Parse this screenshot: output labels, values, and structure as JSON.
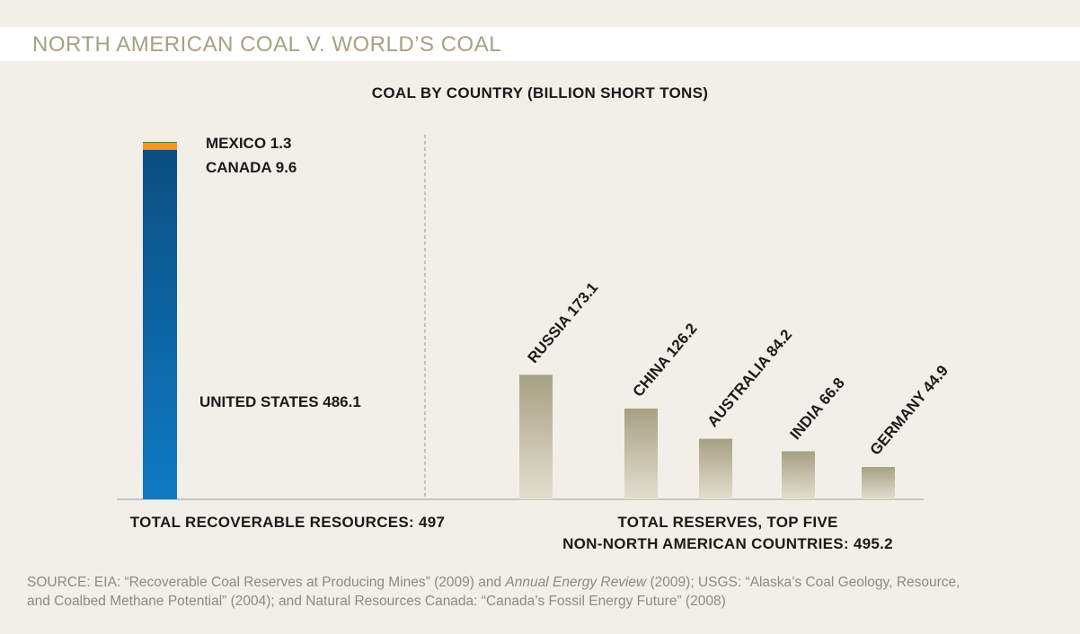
{
  "page_title": "NORTH AMERICAN COAL V. WORLD’S COAL",
  "colors": {
    "us_top": "#0b4e80",
    "us_bottom": "#0f7bc4",
    "canada": "#f5941e",
    "mexico": "#3c8a3c",
    "other_top": "#a6a183",
    "other_bottom": "#e2dfd0",
    "background": "#f1efe8",
    "title": "#a6a183"
  },
  "chart_data": {
    "type": "bar",
    "title": "COAL BY COUNTRY (BILLION SHORT TONS)",
    "unit": "billion short tons",
    "groups": [
      {
        "label": "TOTAL RECOVERABLE RESOURCES: 497",
        "stacked": true,
        "total": 497,
        "segments": [
          {
            "name": "UNITED STATES",
            "value": 486.1,
            "label": "UNITED STATES 486.1"
          },
          {
            "name": "CANADA",
            "value": 9.6,
            "label": "CANADA 9.6"
          },
          {
            "name": "MEXICO",
            "value": 1.3,
            "label": "MEXICO 1.3"
          }
        ]
      },
      {
        "label_lines": [
          "TOTAL RESERVES, TOP FIVE",
          "NON-NORTH AMERICAN COUNTRIES: 495.2"
        ],
        "stacked": false,
        "total": 495.2,
        "categories": [
          "RUSSIA",
          "CHINA",
          "AUSTRALIA",
          "INDIA",
          "GERMANY"
        ],
        "values": [
          173.1,
          126.2,
          84.2,
          66.8,
          44.9
        ],
        "labels": [
          "RUSSIA 173.1",
          "CHINA 126.2",
          "AUSTRALIA 84.2",
          "INDIA 66.8",
          "GERMANY 44.9"
        ]
      }
    ],
    "ylim": [
      0,
      497
    ],
    "grid": false
  },
  "source": {
    "line1_prefix": "SOURCE: EIA: “Recoverable Coal Reserves at Producing Mines” (2009) and ",
    "line1_italic": "Annual Energy Review",
    "line1_suffix": " (2009); USGS: “Alaska’s Coal Geology, Resource,",
    "line2": "and Coalbed Methane Potential” (2004); and Natural Resources Canada: “Canada’s Fossil Energy Future” (2008)"
  }
}
